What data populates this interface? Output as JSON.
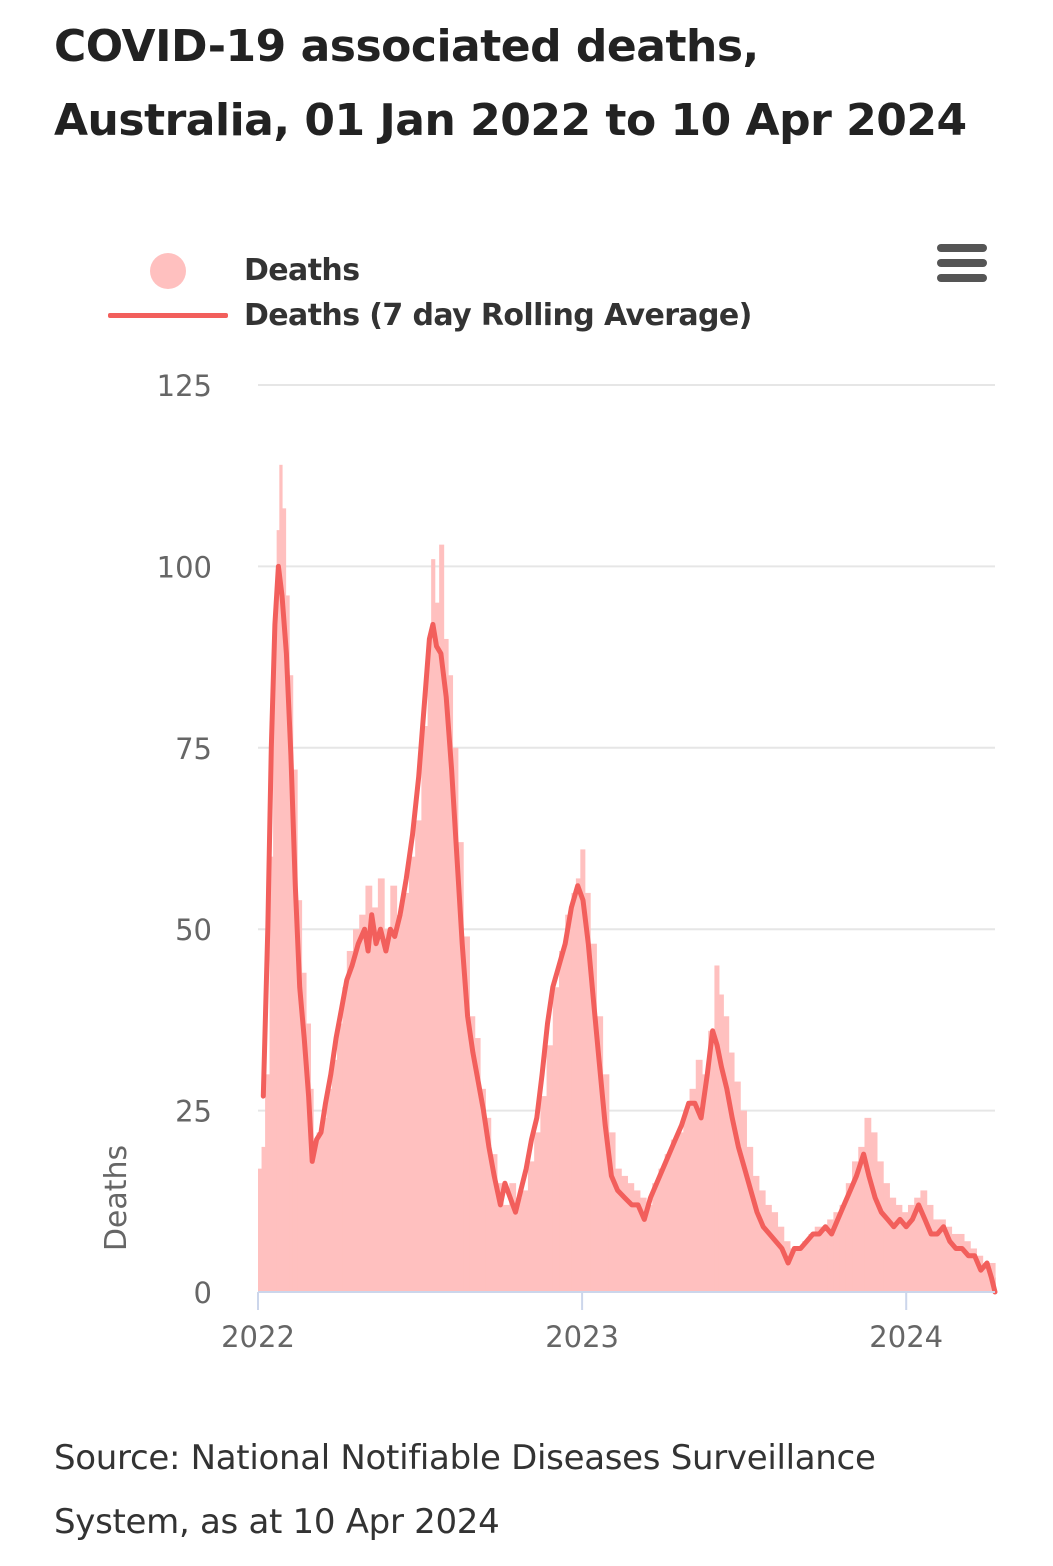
{
  "title_lines": [
    "COVID-19 associated deaths,",
    "Australia, 01 Jan 2022 to 10 Apr 2024"
  ],
  "source_lines": [
    "Source: National Notifiable Diseases Surveillance",
    "System, as at 10 Apr 2024"
  ],
  "colors": {
    "bar": "#ffc0bf",
    "line": "#f25f5c",
    "grid": "#e6e6e6",
    "axis": "#ccd6eb",
    "text": "#333333",
    "tick_text": "#666666",
    "menu": "#555555"
  },
  "menu_icon": "hamburger-menu-icon",
  "legend": [
    {
      "label": "Deaths",
      "symbol": "circle"
    },
    {
      "label": "Deaths (7 day Rolling Average)",
      "symbol": "line"
    }
  ],
  "chart_data": {
    "type": "bar+line",
    "title": "COVID-19 associated deaths, Australia, 01 Jan 2022 to 10 Apr 2024",
    "xlabel": "",
    "ylabel": "Deaths",
    "xlim": [
      "2022-01-01",
      "2024-04-10"
    ],
    "ylim": [
      0,
      125
    ],
    "yticks": [
      0,
      25,
      50,
      75,
      100,
      125
    ],
    "xticks": [
      {
        "date": "2022-01-01",
        "label": "2022"
      },
      {
        "date": "2023-01-01",
        "label": "2023"
      },
      {
        "date": "2024-01-01",
        "label": "2024"
      }
    ],
    "grid": true,
    "legend_position": "top",
    "series": [
      {
        "name": "Deaths",
        "kind": "daily bars",
        "points": [
          [
            "2022-01-01",
            17
          ],
          [
            "2022-01-05",
            20
          ],
          [
            "2022-01-09",
            30
          ],
          [
            "2022-01-14",
            60
          ],
          [
            "2022-01-18",
            90
          ],
          [
            "2022-01-22",
            105
          ],
          [
            "2022-01-25",
            114
          ],
          [
            "2022-01-28",
            108
          ],
          [
            "2022-02-01",
            96
          ],
          [
            "2022-02-05",
            85
          ],
          [
            "2022-02-09",
            72
          ],
          [
            "2022-02-14",
            54
          ],
          [
            "2022-02-19",
            44
          ],
          [
            "2022-02-24",
            37
          ],
          [
            "2022-03-01",
            28
          ],
          [
            "2022-03-04",
            20
          ],
          [
            "2022-03-08",
            22
          ],
          [
            "2022-03-13",
            24
          ],
          [
            "2022-03-19",
            28
          ],
          [
            "2022-03-25",
            32
          ],
          [
            "2022-03-31",
            37
          ],
          [
            "2022-04-06",
            42
          ],
          [
            "2022-04-11",
            47
          ],
          [
            "2022-04-18",
            50
          ],
          [
            "2022-04-25",
            52
          ],
          [
            "2022-05-02",
            56
          ],
          [
            "2022-05-09",
            53
          ],
          [
            "2022-05-16",
            57
          ],
          [
            "2022-05-23",
            50
          ],
          [
            "2022-05-30",
            56
          ],
          [
            "2022-06-06",
            52
          ],
          [
            "2022-06-13",
            55
          ],
          [
            "2022-06-20",
            60
          ],
          [
            "2022-06-27",
            65
          ],
          [
            "2022-07-04",
            78
          ],
          [
            "2022-07-11",
            90
          ],
          [
            "2022-07-15",
            101
          ],
          [
            "2022-07-19",
            95
          ],
          [
            "2022-07-24",
            103
          ],
          [
            "2022-07-29",
            90
          ],
          [
            "2022-08-03",
            85
          ],
          [
            "2022-08-08",
            75
          ],
          [
            "2022-08-14",
            62
          ],
          [
            "2022-08-20",
            49
          ],
          [
            "2022-08-27",
            38
          ],
          [
            "2022-09-02",
            35
          ],
          [
            "2022-09-08",
            28
          ],
          [
            "2022-09-14",
            24
          ],
          [
            "2022-09-20",
            19
          ],
          [
            "2022-09-27",
            15
          ],
          [
            "2022-10-04",
            12
          ],
          [
            "2022-10-11",
            15
          ],
          [
            "2022-10-18",
            13
          ],
          [
            "2022-10-25",
            14
          ],
          [
            "2022-11-01",
            18
          ],
          [
            "2022-11-08",
            22
          ],
          [
            "2022-11-15",
            27
          ],
          [
            "2022-11-22",
            34
          ],
          [
            "2022-11-29",
            42
          ],
          [
            "2022-12-06",
            47
          ],
          [
            "2022-12-13",
            52
          ],
          [
            "2022-12-20",
            55
          ],
          [
            "2022-12-25",
            57
          ],
          [
            "2022-12-30",
            61
          ],
          [
            "2023-01-04",
            55
          ],
          [
            "2023-01-10",
            48
          ],
          [
            "2023-01-17",
            38
          ],
          [
            "2023-01-24",
            30
          ],
          [
            "2023-01-31",
            22
          ],
          [
            "2023-02-07",
            17
          ],
          [
            "2023-02-14",
            16
          ],
          [
            "2023-02-21",
            15
          ],
          [
            "2023-02-28",
            14
          ],
          [
            "2023-03-07",
            13
          ],
          [
            "2023-03-14",
            12
          ],
          [
            "2023-03-21",
            15
          ],
          [
            "2023-03-28",
            17
          ],
          [
            "2023-04-04",
            19
          ],
          [
            "2023-04-11",
            21
          ],
          [
            "2023-04-18",
            22
          ],
          [
            "2023-04-25",
            25
          ],
          [
            "2023-05-02",
            28
          ],
          [
            "2023-05-09",
            32
          ],
          [
            "2023-05-16",
            30
          ],
          [
            "2023-05-23",
            36
          ],
          [
            "2023-05-30",
            45
          ],
          [
            "2023-06-04",
            41
          ],
          [
            "2023-06-09",
            38
          ],
          [
            "2023-06-15",
            33
          ],
          [
            "2023-06-21",
            29
          ],
          [
            "2023-06-28",
            25
          ],
          [
            "2023-07-05",
            20
          ],
          [
            "2023-07-12",
            16
          ],
          [
            "2023-07-19",
            14
          ],
          [
            "2023-07-26",
            12
          ],
          [
            "2023-08-02",
            11
          ],
          [
            "2023-08-09",
            9
          ],
          [
            "2023-08-16",
            7
          ],
          [
            "2023-08-23",
            6
          ],
          [
            "2023-08-30",
            6
          ],
          [
            "2023-09-06",
            7
          ],
          [
            "2023-09-13",
            8
          ],
          [
            "2023-09-20",
            9
          ],
          [
            "2023-09-27",
            9
          ],
          [
            "2023-10-04",
            10
          ],
          [
            "2023-10-11",
            11
          ],
          [
            "2023-10-18",
            12
          ],
          [
            "2023-10-25",
            15
          ],
          [
            "2023-11-01",
            18
          ],
          [
            "2023-11-08",
            20
          ],
          [
            "2023-11-15",
            24
          ],
          [
            "2023-11-22",
            22
          ],
          [
            "2023-11-29",
            18
          ],
          [
            "2023-12-06",
            15
          ],
          [
            "2023-12-13",
            13
          ],
          [
            "2023-12-20",
            12
          ],
          [
            "2023-12-27",
            11
          ],
          [
            "2024-01-03",
            12
          ],
          [
            "2024-01-10",
            13
          ],
          [
            "2024-01-17",
            14
          ],
          [
            "2024-01-24",
            12
          ],
          [
            "2024-01-31",
            10
          ],
          [
            "2024-02-07",
            10
          ],
          [
            "2024-02-14",
            9
          ],
          [
            "2024-02-21",
            8
          ],
          [
            "2024-02-28",
            8
          ],
          [
            "2024-03-06",
            7
          ],
          [
            "2024-03-13",
            6
          ],
          [
            "2024-03-20",
            5
          ],
          [
            "2024-03-27",
            4
          ],
          [
            "2024-04-03",
            4
          ],
          [
            "2024-04-10",
            2
          ]
        ]
      },
      {
        "name": "Deaths (7 day Rolling Average)",
        "kind": "line",
        "points": [
          [
            "2022-01-07",
            27
          ],
          [
            "2022-01-12",
            50
          ],
          [
            "2022-01-16",
            75
          ],
          [
            "2022-01-20",
            92
          ],
          [
            "2022-01-24",
            100
          ],
          [
            "2022-01-28",
            96
          ],
          [
            "2022-02-02",
            88
          ],
          [
            "2022-02-07",
            74
          ],
          [
            "2022-02-12",
            56
          ],
          [
            "2022-02-17",
            42
          ],
          [
            "2022-02-22",
            35
          ],
          [
            "2022-02-27",
            27
          ],
          [
            "2022-03-03",
            18
          ],
          [
            "2022-03-08",
            21
          ],
          [
            "2022-03-13",
            22
          ],
          [
            "2022-03-18",
            26
          ],
          [
            "2022-03-24",
            30
          ],
          [
            "2022-03-30",
            35
          ],
          [
            "2022-04-05",
            39
          ],
          [
            "2022-04-11",
            43
          ],
          [
            "2022-04-17",
            45
          ],
          [
            "2022-04-24",
            48
          ],
          [
            "2022-05-01",
            50
          ],
          [
            "2022-05-05",
            47
          ],
          [
            "2022-05-09",
            52
          ],
          [
            "2022-05-14",
            48
          ],
          [
            "2022-05-19",
            50
          ],
          [
            "2022-05-25",
            47
          ],
          [
            "2022-05-30",
            50
          ],
          [
            "2022-06-04",
            49
          ],
          [
            "2022-06-10",
            52
          ],
          [
            "2022-06-17",
            57
          ],
          [
            "2022-06-24",
            63
          ],
          [
            "2022-07-01",
            71
          ],
          [
            "2022-07-08",
            82
          ],
          [
            "2022-07-13",
            90
          ],
          [
            "2022-07-17",
            92
          ],
          [
            "2022-07-21",
            89
          ],
          [
            "2022-07-26",
            88
          ],
          [
            "2022-08-01",
            82
          ],
          [
            "2022-08-07",
            72
          ],
          [
            "2022-08-13",
            60
          ],
          [
            "2022-08-19",
            48
          ],
          [
            "2022-08-25",
            38
          ],
          [
            "2022-08-31",
            33
          ],
          [
            "2022-09-06",
            29
          ],
          [
            "2022-09-12",
            25
          ],
          [
            "2022-09-18",
            20
          ],
          [
            "2022-09-24",
            16
          ],
          [
            "2022-10-01",
            12
          ],
          [
            "2022-10-06",
            15
          ],
          [
            "2022-10-12",
            13
          ],
          [
            "2022-10-18",
            11
          ],
          [
            "2022-10-24",
            14
          ],
          [
            "2022-10-30",
            17
          ],
          [
            "2022-11-05",
            21
          ],
          [
            "2022-11-11",
            24
          ],
          [
            "2022-11-17",
            30
          ],
          [
            "2022-11-23",
            37
          ],
          [
            "2022-11-29",
            42
          ],
          [
            "2022-12-06",
            45
          ],
          [
            "2022-12-13",
            48
          ],
          [
            "2022-12-20",
            53
          ],
          [
            "2022-12-27",
            56
          ],
          [
            "2023-01-02",
            54
          ],
          [
            "2023-01-08",
            48
          ],
          [
            "2023-01-14",
            40
          ],
          [
            "2023-01-20",
            32
          ],
          [
            "2023-01-27",
            23
          ],
          [
            "2023-02-03",
            16
          ],
          [
            "2023-02-10",
            14
          ],
          [
            "2023-02-18",
            13
          ],
          [
            "2023-02-26",
            12
          ],
          [
            "2023-03-05",
            12
          ],
          [
            "2023-03-12",
            10
          ],
          [
            "2023-03-19",
            13
          ],
          [
            "2023-03-26",
            15
          ],
          [
            "2023-04-02",
            17
          ],
          [
            "2023-04-09",
            19
          ],
          [
            "2023-04-16",
            21
          ],
          [
            "2023-04-23",
            23
          ],
          [
            "2023-05-01",
            26
          ],
          [
            "2023-05-08",
            26
          ],
          [
            "2023-05-15",
            24
          ],
          [
            "2023-05-22",
            30
          ],
          [
            "2023-05-28",
            36
          ],
          [
            "2023-06-02",
            34
          ],
          [
            "2023-06-07",
            31
          ],
          [
            "2023-06-13",
            28
          ],
          [
            "2023-06-19",
            24
          ],
          [
            "2023-06-26",
            20
          ],
          [
            "2023-07-03",
            17
          ],
          [
            "2023-07-10",
            14
          ],
          [
            "2023-07-17",
            11
          ],
          [
            "2023-07-24",
            9
          ],
          [
            "2023-07-31",
            8
          ],
          [
            "2023-08-07",
            7
          ],
          [
            "2023-08-14",
            6
          ],
          [
            "2023-08-21",
            4
          ],
          [
            "2023-08-28",
            6
          ],
          [
            "2023-09-04",
            6
          ],
          [
            "2023-09-11",
            7
          ],
          [
            "2023-09-18",
            8
          ],
          [
            "2023-09-25",
            8
          ],
          [
            "2023-10-02",
            9
          ],
          [
            "2023-10-09",
            8
          ],
          [
            "2023-10-16",
            10
          ],
          [
            "2023-10-23",
            12
          ],
          [
            "2023-10-30",
            14
          ],
          [
            "2023-11-06",
            16
          ],
          [
            "2023-11-14",
            19
          ],
          [
            "2023-11-20",
            16
          ],
          [
            "2023-11-27",
            13
          ],
          [
            "2023-12-04",
            11
          ],
          [
            "2023-12-11",
            10
          ],
          [
            "2023-12-18",
            9
          ],
          [
            "2023-12-25",
            10
          ],
          [
            "2024-01-01",
            9
          ],
          [
            "2024-01-08",
            10
          ],
          [
            "2024-01-15",
            12
          ],
          [
            "2024-01-22",
            10
          ],
          [
            "2024-01-29",
            8
          ],
          [
            "2024-02-05",
            8
          ],
          [
            "2024-02-12",
            9
          ],
          [
            "2024-02-19",
            7
          ],
          [
            "2024-02-26",
            6
          ],
          [
            "2024-03-04",
            6
          ],
          [
            "2024-03-11",
            5
          ],
          [
            "2024-03-18",
            5
          ],
          [
            "2024-03-25",
            3
          ],
          [
            "2024-04-01",
            4
          ],
          [
            "2024-04-06",
            2
          ],
          [
            "2024-04-10",
            0
          ]
        ]
      }
    ]
  }
}
